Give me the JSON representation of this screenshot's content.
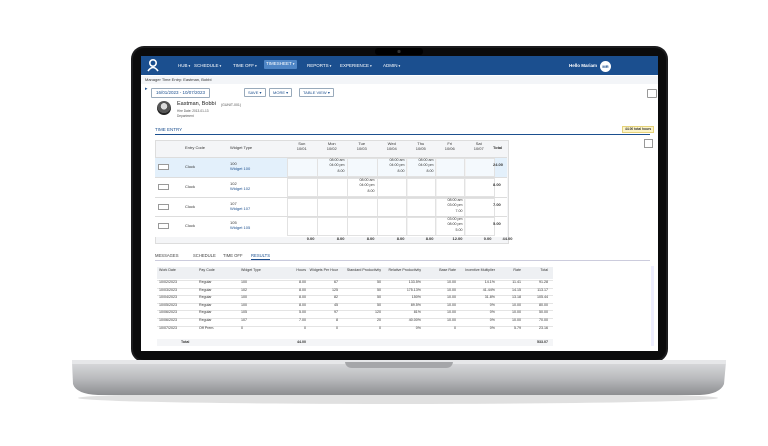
{
  "nav": {
    "items": [
      "HUB",
      "SCHEDULE",
      "TIME OFF",
      "TIMESHEET",
      "REPORTS",
      "EXPERIENCE",
      "ADMIN"
    ],
    "greeting": "Hello Mariam",
    "avatar": "MR"
  },
  "header": {
    "title": "Manager Time Entry: Eastman, Bobbi"
  },
  "toolbar": {
    "date_range": "16/01/2023 - 10/07/2023",
    "buttons": [
      "SAVE",
      "MORE",
      "TABLE VIEW"
    ]
  },
  "employee": {
    "name": "Eastman, Bobbi",
    "id": "(GUNIT-001)",
    "hire_date": "Hire Date: 2013-01-13",
    "department": "Department"
  },
  "time_entry": {
    "tab": "TIME ENTRY",
    "total_badge": "44.00 total hours",
    "columns": [
      "Entry Code",
      "Widget Type",
      "Total"
    ],
    "days": [
      {
        "day": "Sun",
        "date": "10/01"
      },
      {
        "day": "Mon",
        "date": "10/02"
      },
      {
        "day": "Tue",
        "date": "10/03"
      },
      {
        "day": "Wed",
        "date": "10/04"
      },
      {
        "day": "Thu",
        "date": "10/05"
      },
      {
        "day": "Fri",
        "date": "10/06"
      },
      {
        "day": "Sat",
        "date": "10/07"
      }
    ],
    "rows": [
      {
        "code": "Clock",
        "widget_code": "100",
        "widget": "Widget 100",
        "cells": [
          null,
          [
            "08:00 am",
            "04:00 pm",
            "8.00"
          ],
          null,
          [
            "08:00 am",
            "04:00 pm",
            "8.00"
          ],
          [
            "08:00 am",
            "04:00 pm",
            "8.00"
          ],
          null,
          null
        ],
        "total": "24.00"
      },
      {
        "code": "Clock",
        "widget_code": "102",
        "widget": "Widget 102",
        "cells": [
          null,
          null,
          [
            "08:00 am",
            "04:00 pm",
            "8.00"
          ],
          null,
          null,
          null,
          null
        ],
        "total": "8.00"
      },
      {
        "code": "Clock",
        "widget_code": "107",
        "widget": "Widget 107",
        "cells": [
          null,
          null,
          null,
          null,
          null,
          [
            "08:00 am",
            "03:00 pm",
            "7.00"
          ],
          null
        ],
        "total": "7.00"
      },
      {
        "code": "Clock",
        "widget_code": "105",
        "widget": "Widget 105",
        "cells": [
          null,
          null,
          null,
          null,
          null,
          [
            "03:00 pm",
            "08:00 pm",
            "5.00"
          ],
          null
        ],
        "total": "5.00"
      }
    ],
    "footer": [
      "0.00",
      "8.00",
      "8.00",
      "8.00",
      "8.00",
      "12.00",
      "0.00",
      "44.00"
    ]
  },
  "bottom_tabs": [
    "MESSAGES",
    "SCHEDULE",
    "TIME OFF",
    "RESULTS"
  ],
  "results": {
    "columns": [
      "Work Date",
      "Pay Code",
      "Widget Type",
      "Hours",
      "Widgets Per Hour",
      "Standard Productivity",
      "Relative Productivity",
      "Base Rate",
      "Incentive Multiplier",
      "Rate",
      "Total"
    ],
    "rows": [
      [
        "10/02/2023",
        "Regular",
        "100",
        "8.00",
        "67",
        "50",
        "133.5%",
        "10.00",
        "14.1%",
        "11.41",
        "91.28"
      ],
      [
        "10/03/2023",
        "Regular",
        "102",
        "8.00",
        "125",
        "50",
        "175.13%",
        "10.00",
        "41.44%",
        "14.15",
        "113.17"
      ],
      [
        "10/04/2023",
        "Regular",
        "100",
        "8.00",
        "82",
        "50",
        "150%",
        "10.00",
        "31.8%",
        "13.18",
        "105.44"
      ],
      [
        "10/05/2023",
        "Regular",
        "100",
        "8.00",
        "45",
        "50",
        "89.5%",
        "10.00",
        "0%",
        "10.00",
        "80.00"
      ],
      [
        "10/06/2023",
        "Regular",
        "105",
        "5.00",
        "97",
        "120",
        "81%",
        "10.00",
        "0%",
        "10.00",
        "50.00"
      ],
      [
        "10/06/2023",
        "Regular",
        "107",
        "7.00",
        "8",
        "20",
        "40.00%",
        "10.00",
        "0%",
        "10.00",
        "70.00"
      ],
      [
        "10/07/2023",
        "Off Prem.",
        "0",
        "0",
        "0",
        "0",
        "0%",
        "0",
        "0%",
        "5.79",
        "23.16"
      ]
    ],
    "total": {
      "label": "Total",
      "hours": "44.00",
      "total": "533.07"
    }
  }
}
